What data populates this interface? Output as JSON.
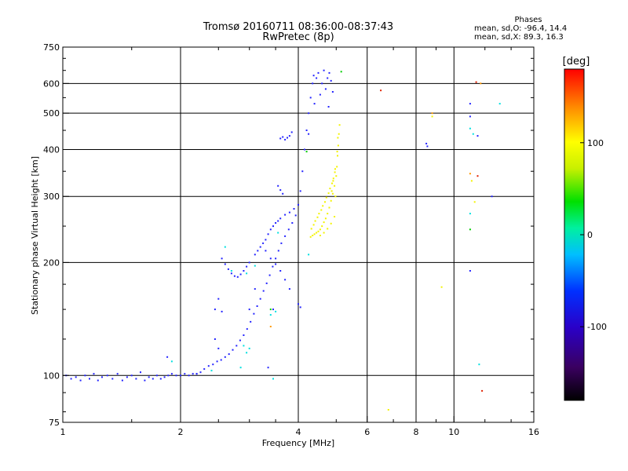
{
  "chart_data": {
    "type": "scatter",
    "title": "Tromsø 20160711 08:36:00-08:37:43",
    "subtitle": "RwPretec (8p)",
    "xlabel": "Frequency [MHz]",
    "ylabel": "Stationary phase Virtual Height [km]",
    "x_scale": "log",
    "y_scale": "log",
    "xlim": [
      1,
      16
    ],
    "ylim": [
      75,
      750
    ],
    "x_ticks": [
      1,
      2,
      4,
      6,
      8,
      10,
      16
    ],
    "x_tick_labels": [
      "1",
      "2",
      "4",
      "6",
      "8",
      "10",
      "16"
    ],
    "y_ticks": [
      75,
      100,
      200,
      300,
      400,
      500,
      600,
      750
    ],
    "y_tick_labels": [
      "75",
      "100",
      "200",
      "300",
      "400",
      "500",
      "600",
      "750"
    ],
    "grid": true,
    "phases_info": {
      "heading": "Phases",
      "o_mode": "mean, sd,O: -96.4, 14.4",
      "x_mode": "mean, sd,X:  89.3, 16.3"
    },
    "colorbar": {
      "label": "[deg]",
      "range": [
        -180,
        180
      ],
      "ticks": [
        100,
        0,
        -100
      ],
      "tick_labels": [
        "100",
        "0",
        "-100"
      ]
    },
    "series": [
      {
        "color": "#2424ff",
        "points": [
          [
            1.02,
            100
          ],
          [
            1.05,
            98
          ],
          [
            1.08,
            99
          ],
          [
            1.11,
            97
          ],
          [
            1.14,
            100
          ],
          [
            1.17,
            98
          ],
          [
            1.2,
            101
          ],
          [
            1.23,
            97
          ],
          [
            1.26,
            99
          ],
          [
            1.3,
            100
          ],
          [
            1.34,
            98
          ],
          [
            1.38,
            101
          ],
          [
            1.42,
            97
          ],
          [
            1.46,
            99
          ],
          [
            1.5,
            100
          ],
          [
            1.54,
            98
          ],
          [
            1.58,
            102
          ],
          [
            1.62,
            97
          ],
          [
            1.66,
            99
          ],
          [
            1.7,
            98
          ],
          [
            1.74,
            100
          ],
          [
            1.78,
            98
          ],
          [
            1.82,
            99
          ],
          [
            1.86,
            100
          ],
          [
            1.9,
            101
          ],
          [
            1.95,
            100
          ],
          [
            2.0,
            100
          ],
          [
            2.05,
            101
          ],
          [
            2.1,
            100
          ],
          [
            2.15,
            101
          ],
          [
            2.2,
            101
          ],
          [
            2.25,
            102
          ],
          [
            2.3,
            104
          ],
          [
            2.36,
            106
          ],
          [
            2.42,
            107
          ],
          [
            2.48,
            109
          ],
          [
            2.54,
            110
          ],
          [
            2.6,
            112
          ],
          [
            2.66,
            114
          ],
          [
            2.72,
            117
          ],
          [
            2.78,
            120
          ],
          [
            2.84,
            124
          ],
          [
            2.9,
            128
          ],
          [
            2.96,
            133
          ],
          [
            3.02,
            139
          ],
          [
            3.08,
            146
          ],
          [
            3.14,
            153
          ],
          [
            3.2,
            160
          ],
          [
            3.26,
            168
          ],
          [
            3.32,
            176
          ],
          [
            3.38,
            185
          ],
          [
            3.44,
            195
          ],
          [
            3.5,
            205
          ],
          [
            3.56,
            215
          ],
          [
            3.62,
            225
          ],
          [
            3.7,
            235
          ],
          [
            3.78,
            245
          ],
          [
            3.86,
            255
          ],
          [
            3.94,
            267
          ],
          [
            4.0,
            285
          ],
          [
            4.05,
            310
          ],
          [
            4.1,
            350
          ],
          [
            4.15,
            400
          ],
          [
            4.2,
            450
          ],
          [
            4.25,
            500
          ],
          [
            4.3,
            550
          ],
          [
            4.35,
            600
          ],
          [
            4.38,
            630
          ],
          [
            4.45,
            620
          ],
          [
            4.5,
            640
          ],
          [
            4.55,
            560
          ],
          [
            4.6,
            600
          ],
          [
            4.65,
            650
          ],
          [
            4.7,
            580
          ],
          [
            4.75,
            620
          ],
          [
            4.8,
            640
          ],
          [
            4.85,
            610
          ],
          [
            4.9,
            570
          ],
          [
            4.4,
            530
          ],
          [
            4.78,
            520
          ],
          [
            3.4,
            245
          ],
          [
            3.5,
            255
          ],
          [
            3.6,
            262
          ],
          [
            3.7,
            268
          ],
          [
            3.8,
            272
          ],
          [
            3.9,
            278
          ],
          [
            3.3,
            230
          ],
          [
            3.35,
            238
          ],
          [
            3.45,
            250
          ],
          [
            3.55,
            258
          ],
          [
            3.1,
            210
          ],
          [
            3.15,
            215
          ],
          [
            3.2,
            220
          ],
          [
            3.25,
            225
          ],
          [
            3.3,
            215
          ],
          [
            3.4,
            205
          ],
          [
            3.5,
            198
          ],
          [
            3.6,
            190
          ],
          [
            3.7,
            180
          ],
          [
            3.8,
            170
          ],
          [
            2.55,
            205
          ],
          [
            2.6,
            198
          ],
          [
            2.65,
            192
          ],
          [
            2.7,
            187
          ],
          [
            2.75,
            184
          ],
          [
            2.8,
            183
          ],
          [
            2.85,
            186
          ],
          [
            2.9,
            190
          ],
          [
            2.95,
            195
          ],
          [
            3.0,
            200
          ],
          [
            3.55,
            320
          ],
          [
            3.6,
            312
          ],
          [
            3.65,
            305
          ],
          [
            3.7,
            425
          ],
          [
            3.75,
            430
          ],
          [
            3.8,
            435
          ],
          [
            3.85,
            445
          ],
          [
            3.6,
            428
          ],
          [
            3.65,
            432
          ],
          [
            4.0,
            155
          ],
          [
            4.05,
            152
          ],
          [
            2.45,
            150
          ],
          [
            2.5,
            160
          ],
          [
            2.55,
            148
          ],
          [
            2.45,
            125
          ],
          [
            2.5,
            118
          ],
          [
            3.35,
            105
          ],
          [
            3.45,
            150
          ],
          [
            1.85,
            112
          ],
          [
            2.2,
            101
          ],
          [
            8.5,
            415
          ],
          [
            8.55,
            408
          ],
          [
            11.0,
            530
          ],
          [
            11.0,
            490
          ],
          [
            11.0,
            190
          ],
          [
            11.5,
            435
          ],
          [
            12.5,
            300
          ],
          [
            4.25,
            440
          ],
          [
            3.1,
            170
          ],
          [
            3.0,
            150
          ]
        ]
      },
      {
        "color": "#f3f300",
        "points": [
          [
            4.3,
            234
          ],
          [
            4.35,
            236
          ],
          [
            4.4,
            238
          ],
          [
            4.45,
            240
          ],
          [
            4.5,
            242
          ],
          [
            4.55,
            245
          ],
          [
            4.6,
            250
          ],
          [
            4.65,
            256
          ],
          [
            4.7,
            262
          ],
          [
            4.75,
            270
          ],
          [
            4.8,
            280
          ],
          [
            4.85,
            292
          ],
          [
            4.9,
            305
          ],
          [
            4.95,
            320
          ],
          [
            5.0,
            340
          ],
          [
            5.02,
            360
          ],
          [
            5.04,
            385
          ],
          [
            5.06,
            410
          ],
          [
            5.08,
            440
          ],
          [
            5.1,
            465
          ],
          [
            4.32,
            246
          ],
          [
            4.38,
            252
          ],
          [
            4.42,
            258
          ],
          [
            4.48,
            264
          ],
          [
            4.52,
            270
          ],
          [
            4.58,
            276
          ],
          [
            4.62,
            283
          ],
          [
            4.68,
            290
          ],
          [
            4.72,
            298
          ],
          [
            4.78,
            306
          ],
          [
            4.82,
            315
          ],
          [
            4.88,
            325
          ],
          [
            4.92,
            335
          ],
          [
            4.96,
            348
          ],
          [
            4.98,
            300
          ],
          [
            4.55,
            236
          ],
          [
            4.65,
            240
          ],
          [
            4.75,
            246
          ],
          [
            4.85,
            254
          ],
          [
            4.95,
            265
          ],
          [
            5.05,
            430
          ],
          [
            5.03,
            395
          ],
          [
            4.97,
            355
          ],
          [
            4.91,
            330
          ],
          [
            4.87,
            310
          ],
          [
            8.8,
            490
          ],
          [
            9.3,
            172
          ],
          [
            11.1,
            330
          ],
          [
            11.3,
            290
          ],
          [
            6.8,
            81
          ]
        ]
      },
      {
        "color": "#00e0e0",
        "points": [
          [
            2.6,
            220
          ],
          [
            2.7,
            190
          ],
          [
            2.9,
            120
          ],
          [
            2.95,
            115
          ],
          [
            3.0,
            118
          ],
          [
            3.45,
            98
          ],
          [
            3.4,
            145
          ],
          [
            4.25,
            210
          ],
          [
            11.0,
            270
          ],
          [
            11.2,
            440
          ],
          [
            11.0,
            455
          ],
          [
            13.1,
            530
          ],
          [
            11.6,
            107
          ],
          [
            2.4,
            103
          ],
          [
            2.85,
            105
          ],
          [
            1.9,
            109
          ],
          [
            3.55,
            240
          ],
          [
            3.5,
            148
          ],
          [
            2.95,
            187
          ],
          [
            3.1,
            196
          ]
        ]
      },
      {
        "color": "#00cc00",
        "points": [
          [
            5.15,
            645
          ],
          [
            4.2,
            395
          ],
          [
            11.0,
            245
          ],
          [
            3.4,
            150
          ]
        ]
      },
      {
        "color": "#e02000",
        "points": [
          [
            6.5,
            575
          ],
          [
            11.5,
            340
          ],
          [
            11.8,
            91
          ],
          [
            11.4,
            605
          ]
        ]
      },
      {
        "color": "#ff9900",
        "points": [
          [
            3.4,
            135
          ],
          [
            11.0,
            345
          ],
          [
            11.7,
            600
          ],
          [
            8.8,
            500
          ]
        ]
      }
    ]
  }
}
